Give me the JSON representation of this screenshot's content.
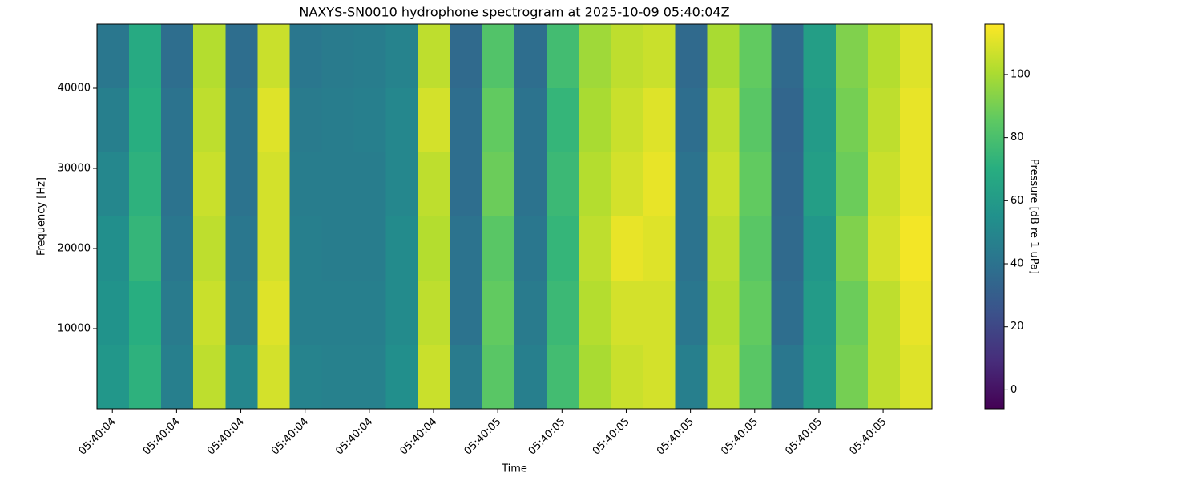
{
  "chart_data": {
    "type": "heatmap",
    "title": "NAXYS-SN0010 hydrophone spectrogram at 2025-10-09 05:40:04Z",
    "x_label": "Time",
    "y_label": "Frequency [Hz]",
    "colorbar_label": "Pressure [dB re 1 uPa]",
    "colormap": "viridis",
    "x": [
      4.401,
      4.451,
      4.501,
      4.551,
      4.601,
      4.651,
      4.701,
      4.751,
      4.801,
      4.851,
      4.901,
      4.951,
      5.001,
      5.051,
      5.101,
      5.151,
      5.201,
      5.251,
      5.301,
      5.351,
      5.401,
      5.451,
      5.501,
      5.551,
      5.601,
      5.651
    ],
    "y": [
      44000,
      36000,
      28000,
      20000,
      12000,
      4000
    ],
    "z": [
      [
        42,
        68,
        38,
        102,
        38,
        106,
        42,
        44,
        45,
        48,
        104,
        36,
        82,
        38,
        78,
        98,
        104,
        106,
        36,
        100,
        86,
        36,
        62,
        92,
        102,
        110
      ],
      [
        46,
        70,
        40,
        104,
        40,
        110,
        44,
        45,
        46,
        50,
        108,
        38,
        86,
        40,
        74,
        100,
        106,
        110,
        38,
        104,
        84,
        34,
        60,
        90,
        104,
        112
      ],
      [
        50,
        72,
        40,
        106,
        40,
        108,
        45,
        45,
        45,
        50,
        104,
        38,
        88,
        40,
        76,
        102,
        108,
        112,
        40,
        106,
        86,
        35,
        62,
        88,
        106,
        112
      ],
      [
        54,
        74,
        42,
        104,
        42,
        108,
        46,
        45,
        45,
        52,
        102,
        40,
        84,
        42,
        74,
        104,
        112,
        110,
        40,
        104,
        84,
        36,
        58,
        92,
        108,
        114
      ],
      [
        56,
        70,
        44,
        106,
        44,
        110,
        46,
        46,
        46,
        52,
        104,
        40,
        86,
        44,
        76,
        102,
        108,
        108,
        42,
        102,
        86,
        38,
        60,
        88,
        104,
        112
      ],
      [
        58,
        72,
        46,
        104,
        50,
        108,
        48,
        47,
        47,
        54,
        106,
        44,
        84,
        46,
        78,
        100,
        106,
        108,
        46,
        104,
        84,
        42,
        62,
        90,
        104,
        110
      ]
    ],
    "xlim": [
      4.376,
      5.676
    ],
    "ylim": [
      0,
      48000
    ],
    "clim": [
      -6,
      116
    ],
    "xticks": [
      {
        "value": 4.4,
        "label": "05:40:04"
      },
      {
        "value": 4.5,
        "label": "05:40:04"
      },
      {
        "value": 4.6,
        "label": "05:40:04"
      },
      {
        "value": 4.7,
        "label": "05:40:04"
      },
      {
        "value": 4.8,
        "label": "05:40:04"
      },
      {
        "value": 4.9,
        "label": "05:40:04"
      },
      {
        "value": 5.0,
        "label": "05:40:05"
      },
      {
        "value": 5.1,
        "label": "05:40:05"
      },
      {
        "value": 5.2,
        "label": "05:40:05"
      },
      {
        "value": 5.3,
        "label": "05:40:05"
      },
      {
        "value": 5.4,
        "label": "05:40:05"
      },
      {
        "value": 5.5,
        "label": "05:40:05"
      },
      {
        "value": 5.6,
        "label": "05:40:05"
      }
    ],
    "yticks": [
      10000,
      20000,
      30000,
      40000
    ],
    "cticks": [
      0,
      20,
      40,
      60,
      80,
      100
    ]
  }
}
